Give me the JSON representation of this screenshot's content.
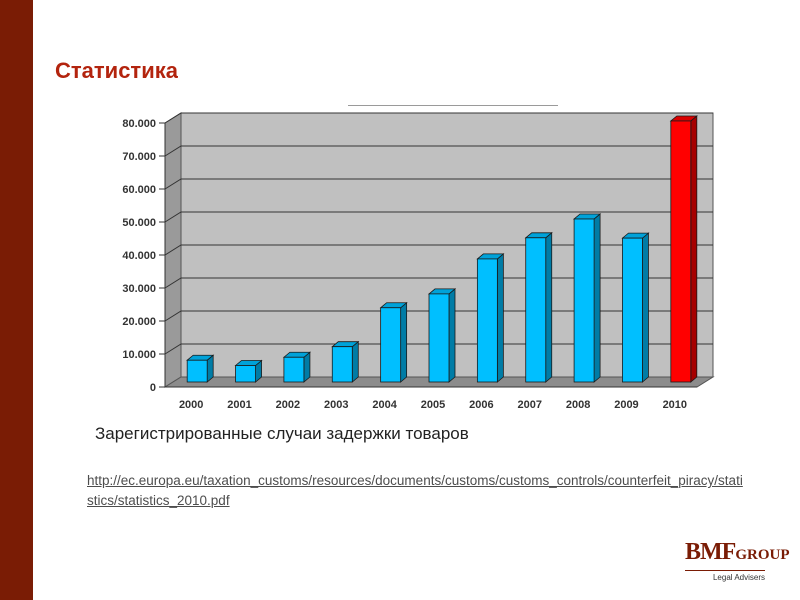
{
  "slide": {
    "title": "Статистика",
    "caption": "Зарегистрированные случаи задержки товаров",
    "source_url": "http://ec.europa.eu/taxation_customs/resources/documents/customs/customs_controls/counterfeit_piracy/statistics/statistics_2010.pdf"
  },
  "logo": {
    "brand": "BMF",
    "group": "GROUP",
    "tagline": "Legal  Advisers",
    "color": "#7a1c05"
  },
  "colors": {
    "accent_bar": "#7a1c05",
    "title": "#b3240e",
    "bar_normal": "#00bfff",
    "bar_highlight": "#ff0000",
    "plot_background": "#c0c0c0"
  },
  "chart_data": {
    "type": "bar",
    "categories": [
      "2000",
      "2001",
      "2002",
      "2003",
      "2004",
      "2005",
      "2006",
      "2007",
      "2008",
      "2009",
      "2010"
    ],
    "values": [
      6600,
      5000,
      7500,
      10700,
      22500,
      26700,
      37300,
      43700,
      49400,
      43600,
      79100
    ],
    "highlight_index": 10,
    "ylim": [
      0,
      80000
    ],
    "yticks": [
      0,
      10000,
      20000,
      30000,
      40000,
      50000,
      60000,
      70000,
      80000
    ],
    "ytick_labels": [
      "0",
      "10.000",
      "20.000",
      "30.000",
      "40.000",
      "50.000",
      "60.000",
      "70.000",
      "80.000"
    ],
    "grid": true,
    "style": "3d-columns",
    "title": "",
    "xlabel": "",
    "ylabel": ""
  }
}
